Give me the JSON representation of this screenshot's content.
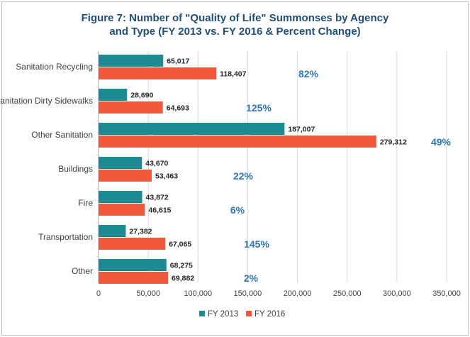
{
  "chart_data": {
    "type": "bar",
    "orientation": "horizontal",
    "title_line1": "Figure 7: Number of \"Quality of Life\" Summonses by Agency",
    "title_line2": "and Type (FY 2013 vs. FY 2016 & Percent Change)",
    "categories": [
      "Sanitation Recycling",
      "Sanitation Dirty Sidewalks",
      "Other Sanitation",
      "Buildings",
      "Fire",
      "Transportation",
      "Other"
    ],
    "series": [
      {
        "name": "FY 2013",
        "color": "#1e8a94",
        "values": [
          65017,
          28690,
          187007,
          43670,
          43872,
          27382,
          68275
        ],
        "labels": [
          "65,017",
          "28,690",
          "187,007",
          "43,670",
          "43,872",
          "27,382",
          "68,275"
        ]
      },
      {
        "name": "FY 2016",
        "color": "#f0583a",
        "values": [
          118407,
          64693,
          279312,
          53463,
          46615,
          67065,
          69882
        ],
        "labels": [
          "118,407",
          "64,693",
          "279,312",
          "53,463",
          "46,615",
          "67,065",
          "69,882"
        ]
      }
    ],
    "percent_change": [
      "82%",
      "125%",
      "49%",
      "22%",
      "6%",
      "145%",
      "2%"
    ],
    "x_ticks": [
      0,
      50000,
      100000,
      150000,
      200000,
      250000,
      300000,
      350000
    ],
    "x_tick_labels": [
      "0",
      "50,000",
      "100,000",
      "150,000",
      "200,000",
      "250,000",
      "300,000",
      "350,000"
    ],
    "xlim": [
      0,
      350000
    ],
    "grid": true,
    "legend_position": "bottom"
  }
}
